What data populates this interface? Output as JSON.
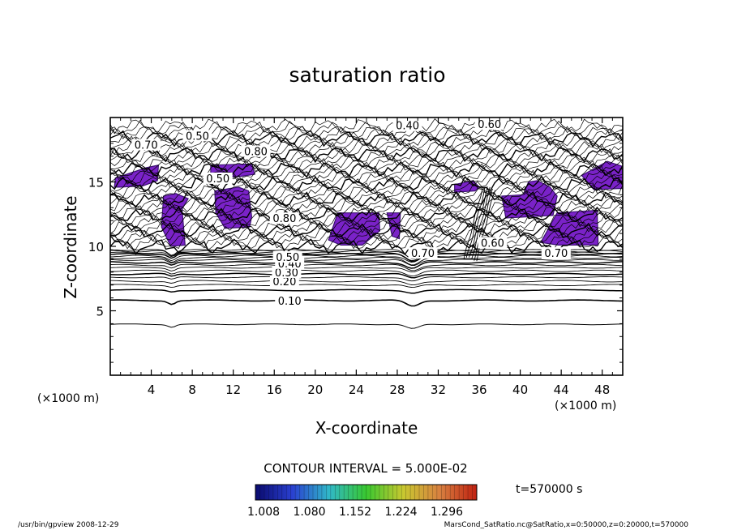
{
  "chart_data": {
    "type": "contour",
    "title": "saturation ratio",
    "xlabel": "X-coordinate",
    "ylabel": "Z-coordinate",
    "x_unit_left": "(×1000 m)",
    "x_unit_right": "(×1000 m)",
    "xlim": [
      0,
      50
    ],
    "ylim": [
      0,
      20
    ],
    "x_ticks": [
      4,
      8,
      12,
      16,
      20,
      24,
      28,
      32,
      36,
      40,
      44,
      48
    ],
    "x_tick_labels": [
      "4",
      "8",
      "12",
      "16",
      "20",
      "24",
      "28",
      "32",
      "36",
      "40",
      "44",
      "48"
    ],
    "y_ticks": [
      5,
      10,
      15
    ],
    "y_tick_labels": [
      "5",
      "10",
      "15"
    ],
    "contour_interval_text": "CONTOUR INTERVAL = 5.000E-02",
    "contour_labels": [
      {
        "text": "0.10",
        "x": 17.5,
        "y": 5.6
      },
      {
        "text": "0.20",
        "x": 17.0,
        "y": 7.1
      },
      {
        "text": "0.30",
        "x": 17.2,
        "y": 7.8
      },
      {
        "text": "0.40",
        "x": 17.5,
        "y": 8.5
      },
      {
        "text": "0.50",
        "x": 17.3,
        "y": 9.0
      },
      {
        "text": "0.70",
        "x": 30.5,
        "y": 9.3
      },
      {
        "text": "0.70",
        "x": 43.5,
        "y": 9.3
      },
      {
        "text": "0.60",
        "x": 37.3,
        "y": 10.1
      },
      {
        "text": "0.50",
        "x": 8.5,
        "y": 18.4
      },
      {
        "text": "0.80",
        "x": 14.2,
        "y": 17.2
      },
      {
        "text": "0.70",
        "x": 3.5,
        "y": 17.7
      },
      {
        "text": "0.40",
        "x": 29.0,
        "y": 19.2
      },
      {
        "text": "0.60",
        "x": 37.0,
        "y": 19.3
      },
      {
        "text": "0.50",
        "x": 10.5,
        "y": 15.1
      },
      {
        "text": "0.80",
        "x": 17.0,
        "y": 12.0
      }
    ],
    "supersaturated_regions": [
      {
        "x": [
          0.5,
          3.5,
          4.7,
          4.6,
          3.2,
          1.0,
          0.4
        ],
        "y": [
          15.3,
          16.1,
          16.3,
          15.1,
          14.7,
          14.6,
          14.6
        ]
      },
      {
        "x": [
          9.8,
          13.8,
          14.1,
          12.5,
          9.8
        ],
        "y": [
          16.3,
          16.4,
          15.6,
          15.4,
          15.4
        ]
      },
      {
        "x": [
          5.2,
          6.4,
          7.6,
          7.0,
          7.3,
          5.9,
          5.0
        ],
        "y": [
          13.9,
          14.1,
          13.7,
          12.9,
          10.1,
          10.0,
          11.5
        ]
      },
      {
        "x": [
          10.2,
          12.5,
          13.5,
          13.8,
          13.6,
          11.2,
          10.3
        ],
        "y": [
          14.3,
          14.6,
          14.3,
          12.3,
          11.5,
          11.4,
          12.6
        ]
      },
      {
        "x": [
          22.2,
          26.2,
          26.3,
          24.6,
          22.5,
          21.3
        ],
        "y": [
          12.6,
          12.6,
          11.2,
          10.1,
          10.1,
          10.5
        ]
      },
      {
        "x": [
          27.0,
          28.3,
          28.2,
          27.5
        ],
        "y": [
          12.6,
          12.6,
          10.6,
          10.8
        ]
      },
      {
        "x": [
          33.6,
          35.4,
          36.0,
          35.6,
          33.6
        ],
        "y": [
          14.8,
          15.1,
          14.6,
          14.3,
          14.2
        ]
      },
      {
        "x": [
          38.2,
          40.3,
          40.8,
          41.7,
          42.9,
          43.6,
          43.2,
          38.6
        ],
        "y": [
          13.9,
          14.0,
          15.0,
          15.1,
          14.6,
          13.9,
          12.4,
          12.2
        ]
      },
      {
        "x": [
          43.6,
          47.5,
          47.6,
          43.7,
          42.0
        ],
        "y": [
          12.6,
          12.8,
          10.1,
          10.1,
          10.3
        ]
      },
      {
        "x": [
          46.0,
          48.5,
          50.0,
          50.0,
          47.2
        ],
        "y": [
          15.5,
          16.6,
          16.2,
          14.5,
          14.4
        ]
      }
    ],
    "colorbar": {
      "min": 1.008,
      "max": 1.296,
      "tick_labels": [
        "1.008",
        "1.080",
        "1.152",
        "1.224",
        "1.296"
      ],
      "colors": [
        "#0a0a6e",
        "#2a40d0",
        "#30b8c8",
        "#38c830",
        "#c8c830",
        "#d88040",
        "#c02010"
      ]
    },
    "time_label": "t=570000 s"
  },
  "footer": {
    "left": "/usr/bin/gpview  2008-12-29",
    "right": "MarsCond_SatRatio.nc@SatRatio,x=0:50000,z=0:20000,t=570000"
  }
}
